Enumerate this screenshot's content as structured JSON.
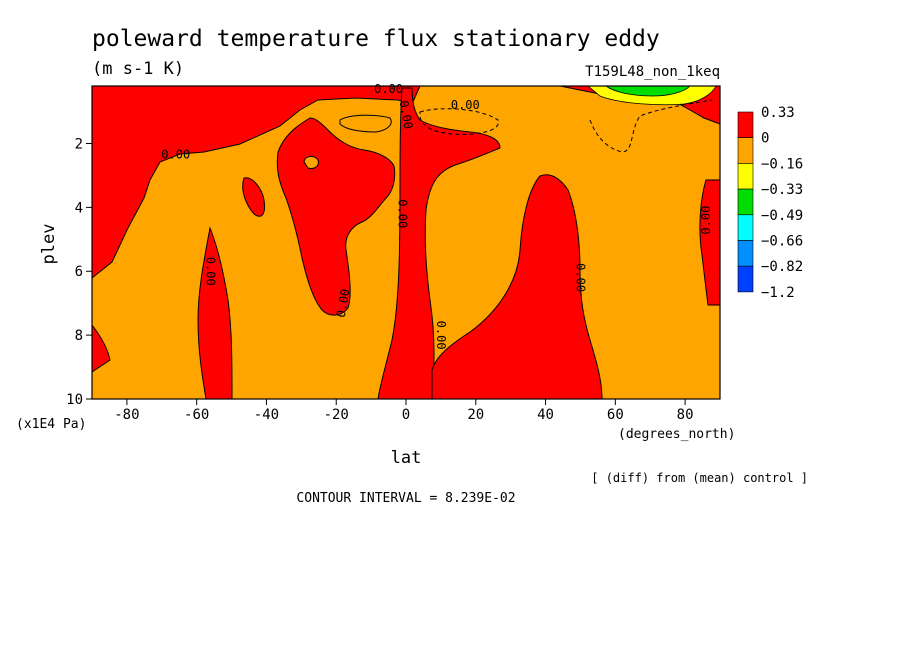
{
  "chart_data": {
    "type": "heatmap",
    "title": "poleward temperature flux stationary eddy",
    "units": "(m s-1 K)",
    "run_label": "T159L48_non_1keq",
    "xlabel": "lat",
    "x_units": "(degrees_north)",
    "ylabel": "plev",
    "y_units": "(x1E4 Pa)",
    "xlim": [
      -90,
      90
    ],
    "ylim": [
      10,
      0.2
    ],
    "x_ticks": [
      -80,
      -60,
      -40,
      -20,
      0,
      20,
      40,
      60,
      80
    ],
    "x_tick_labels": [
      "-80",
      "-60",
      "-40",
      "-20",
      "0",
      "20",
      "40",
      "60",
      "80"
    ],
    "y_ticks": [
      2,
      4,
      6,
      8,
      10
    ],
    "y_tick_labels": [
      "2",
      "4",
      "6",
      "8",
      "10"
    ],
    "colorbar": {
      "colors": [
        "#ff0000",
        "#ffa500",
        "#ffff00",
        "#00dd00",
        "#00ffff",
        "#0090ff",
        "#0040ff"
      ],
      "labels": [
        "0.33",
        "0",
        "−0.16",
        "−0.33",
        "−0.49",
        "−0.66",
        "−0.82",
        "−1.2"
      ]
    },
    "contour_labels": [
      "0.00",
      "0.00",
      "0.00",
      "0.00",
      "0.00",
      "0.00",
      "0.00",
      "0.00",
      "0.00",
      "0.00"
    ],
    "positive_regions": [
      {
        "name": "sh-high-lat",
        "lat": [
          -90,
          -62
        ],
        "plev": [
          0.2,
          2.5
        ]
      },
      {
        "name": "sh-60s-column",
        "lat": [
          -62,
          -52
        ],
        "plev": [
          4.6,
          10
        ]
      },
      {
        "name": "sh-subtropics",
        "lat": [
          -38,
          -10
        ],
        "plev": [
          0.6,
          7.3
        ]
      },
      {
        "name": "equatorial-column",
        "lat": [
          -2,
          10
        ],
        "plev": [
          0.2,
          10
        ]
      },
      {
        "name": "nh-40n-column",
        "lat": [
          28,
          55
        ],
        "plev": [
          2.9,
          10
        ]
      },
      {
        "name": "tropical-lower",
        "lat": [
          8,
          55
        ],
        "plev": [
          8,
          10
        ]
      }
    ],
    "negative_extreme": {
      "lat": [
        55,
        90
      ],
      "plev": [
        0.2,
        0.8
      ],
      "min_band": "−0.49"
    },
    "footer_note": "[ (diff) from (mean) control ]",
    "contour_interval": "CONTOUR INTERVAL = 8.239E-02"
  }
}
